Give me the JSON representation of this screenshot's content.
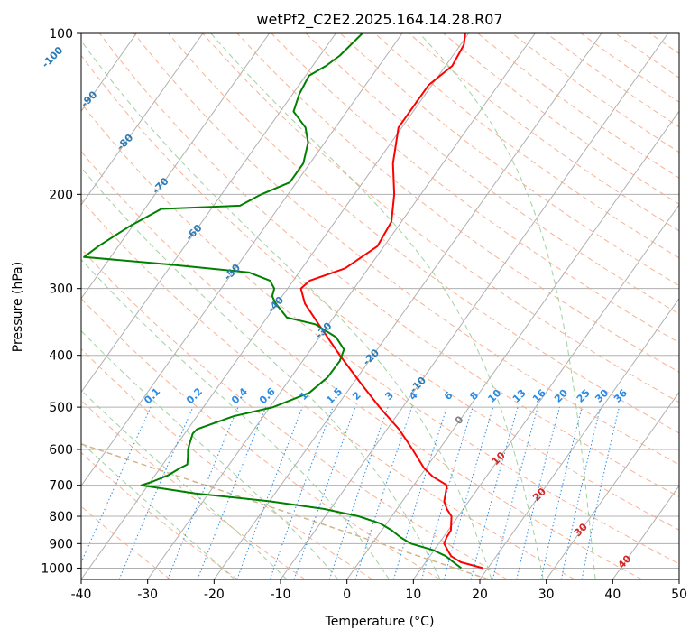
{
  "chart_data": {
    "type": "line",
    "title": "wetPf2_C2E2.2025.164.14.28.R07",
    "xlabel": "Temperature (°C)",
    "ylabel": "Pressure (hPa)",
    "xlim": [
      -40,
      50
    ],
    "ylim": [
      1050,
      100
    ],
    "y_scale": "log",
    "skew": true,
    "x_ticks": [
      -40,
      -30,
      -20,
      -10,
      0,
      10,
      20,
      30,
      40,
      50
    ],
    "y_ticks": [
      100,
      200,
      300,
      400,
      500,
      600,
      700,
      800,
      900,
      1000
    ],
    "grid": true,
    "colors": {
      "temperature": "#ff0000",
      "dewpoint": "#008000",
      "isotherm": "#b0b0b0",
      "dry_adiabat": "#f4a582",
      "moist_adiabat": "#8fc98f",
      "mixing_ratio": "#2b8ce6",
      "isotherm_label": "#2c7bb6",
      "frost_point_curve": "#d2b48c",
      "label_gray": "#808080",
      "label_red": "#d62728"
    },
    "series": [
      {
        "key": "temperature",
        "points": [
          [
            1000,
            19.2
          ],
          [
            975,
            15.3
          ],
          [
            950,
            13.2
          ],
          [
            925,
            12.0
          ],
          [
            900,
            10.8
          ],
          [
            875,
            10.5
          ],
          [
            850,
            10.4
          ],
          [
            800,
            9.0
          ],
          [
            775,
            7.5
          ],
          [
            750,
            6.3
          ],
          [
            700,
            5.0
          ],
          [
            675,
            2.0
          ],
          [
            650,
            -0.3
          ],
          [
            600,
            -4.0
          ],
          [
            550,
            -8.2
          ],
          [
            500,
            -13.5
          ],
          [
            450,
            -19.0
          ],
          [
            400,
            -25.0
          ],
          [
            350,
            -31.5
          ],
          [
            320,
            -35.8
          ],
          [
            300,
            -38.0
          ],
          [
            290,
            -37.5
          ],
          [
            275,
            -33.5
          ],
          [
            250,
            -31.0
          ],
          [
            225,
            -31.5
          ],
          [
            200,
            -34.0
          ],
          [
            175,
            -37.5
          ],
          [
            150,
            -40.5
          ],
          [
            125,
            -40.5
          ],
          [
            115,
            -39.0
          ],
          [
            105,
            -39.5
          ],
          [
            100,
            -40.5
          ]
        ]
      },
      {
        "key": "dewpoint",
        "points": [
          [
            1000,
            16.0
          ],
          [
            975,
            14.2
          ],
          [
            950,
            12.4
          ],
          [
            925,
            9.8
          ],
          [
            900,
            5.8
          ],
          [
            875,
            3.5
          ],
          [
            850,
            1.5
          ],
          [
            825,
            -1.0
          ],
          [
            800,
            -5.0
          ],
          [
            775,
            -11.0
          ],
          [
            750,
            -20.0
          ],
          [
            725,
            -32.0
          ],
          [
            700,
            -41.0
          ],
          [
            690,
            -39.8
          ],
          [
            670,
            -38.0
          ],
          [
            650,
            -37.0
          ],
          [
            640,
            -36.3
          ],
          [
            620,
            -37.0
          ],
          [
            600,
            -37.8
          ],
          [
            580,
            -38.3
          ],
          [
            560,
            -38.8
          ],
          [
            550,
            -38.6
          ],
          [
            520,
            -34.5
          ],
          [
            500,
            -29.5
          ],
          [
            470,
            -25.6
          ],
          [
            440,
            -24.5
          ],
          [
            410,
            -24.4
          ],
          [
            390,
            -25.0
          ],
          [
            370,
            -27.5
          ],
          [
            350,
            -32.0
          ],
          [
            340,
            -37.0
          ],
          [
            320,
            -40.2
          ],
          [
            310,
            -41.5
          ],
          [
            300,
            -42.0
          ],
          [
            290,
            -43.5
          ],
          [
            280,
            -47.5
          ],
          [
            270,
            -61.0
          ],
          [
            262,
            -74.0
          ],
          [
            250,
            -73.0
          ],
          [
            230,
            -70.5
          ],
          [
            213,
            -67.5
          ],
          [
            210,
            -56.0
          ],
          [
            200,
            -54.0
          ],
          [
            190,
            -51.0
          ],
          [
            175,
            -51.0
          ],
          [
            160,
            -52.5
          ],
          [
            150,
            -54.5
          ],
          [
            140,
            -58.0
          ],
          [
            130,
            -59.0
          ],
          [
            120,
            -59.5
          ],
          [
            115,
            -58.0
          ],
          [
            110,
            -57.0
          ],
          [
            100,
            -56.0
          ]
        ]
      }
    ],
    "isotherm_labels": [
      "-100",
      "-90",
      "-80",
      "-70",
      "-60",
      "-50",
      "-40",
      "-30",
      "-20",
      "-10",
      "0",
      "10",
      "20",
      "30",
      "40"
    ],
    "mixing_ratio_labels": [
      "0.1",
      "0.2",
      "0.4",
      "0.6",
      "1",
      "1.5",
      "2",
      "3",
      "4",
      "6",
      "8",
      "10",
      "13",
      "16",
      "20",
      "25",
      "30",
      "36"
    ]
  }
}
